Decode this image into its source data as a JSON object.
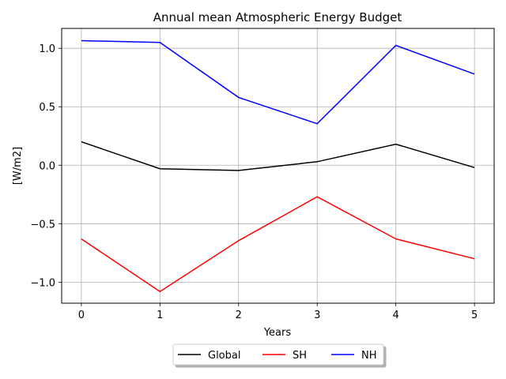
{
  "chart_data": {
    "type": "line",
    "title": "Annual mean Atmospheric Energy Budget",
    "xlabel": "Years",
    "ylabel": "[W/m2]",
    "x": [
      0,
      1,
      2,
      3,
      4,
      5
    ],
    "xticks": [
      "0",
      "1",
      "2",
      "3",
      "4",
      "5"
    ],
    "yticks": [
      -1.0,
      -0.5,
      0.0,
      0.5,
      1.0
    ],
    "ytick_labels": [
      "−1.0",
      "−0.5",
      "0.0",
      "0.5",
      "1.0"
    ],
    "xlim": [
      -0.25,
      5.25
    ],
    "ylim": [
      -1.18,
      1.17
    ],
    "grid": true,
    "legend_position": "bottom-center outside",
    "series": [
      {
        "name": "Global",
        "color": "#000000",
        "values": [
          0.2,
          -0.03,
          -0.045,
          0.03,
          0.18,
          -0.02
        ]
      },
      {
        "name": "SH",
        "color": "#ff0000",
        "values": [
          -0.63,
          -1.08,
          -0.645,
          -0.27,
          -0.63,
          -0.8
        ]
      },
      {
        "name": "NH",
        "color": "#0000ff",
        "values": [
          1.065,
          1.05,
          0.58,
          0.355,
          1.025,
          0.78
        ]
      }
    ]
  }
}
